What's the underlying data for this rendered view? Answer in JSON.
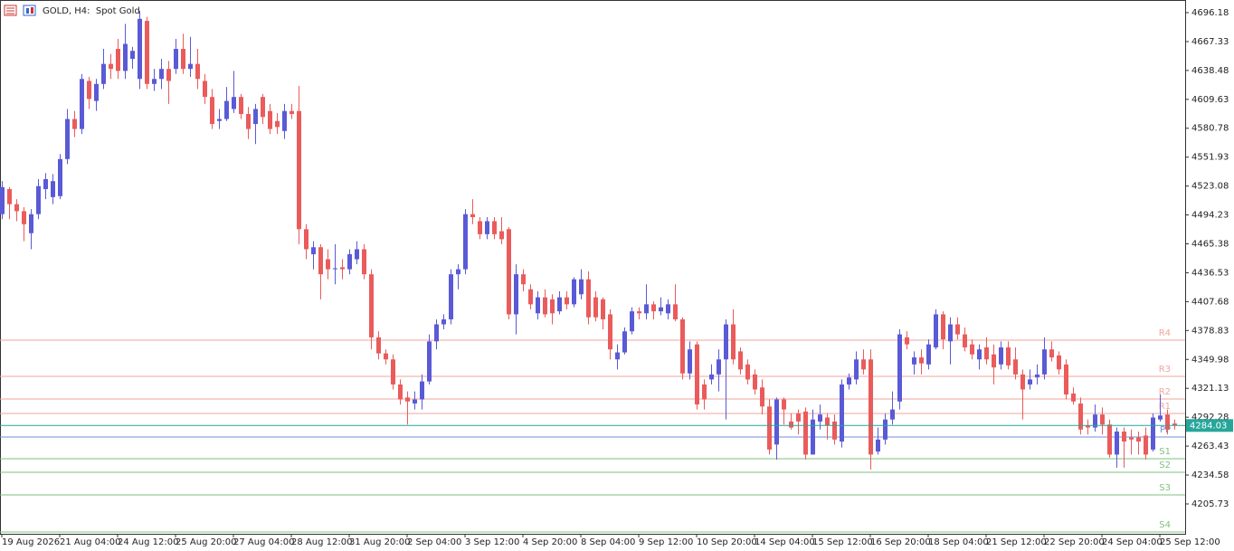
{
  "chart_data": {
    "type": "candlestick",
    "title": "GOLD, H4:  Spot Gold",
    "categories": [
      "19 Aug 2026",
      null,
      null,
      null,
      null,
      null,
      null,
      null,
      "21 Aug 04:00",
      null,
      null,
      null,
      null,
      null,
      null,
      null,
      "24 Aug 12:00",
      null,
      null,
      null,
      null,
      null,
      null,
      null,
      "25 Aug 20:00",
      null,
      null,
      null,
      null,
      null,
      null,
      null,
      "27 Aug 04:00",
      null,
      null,
      null,
      null,
      null,
      null,
      null,
      "28 Aug 12:00",
      null,
      null,
      null,
      null,
      null,
      null,
      null,
      "31 Aug 20:00",
      null,
      null,
      null,
      null,
      null,
      null,
      null,
      "2 Sep 04:00",
      null,
      null,
      null,
      null,
      null,
      null,
      null,
      "3 Sep 12:00",
      null,
      null,
      null,
      null,
      null,
      null,
      null,
      "4 Sep 20:00",
      null,
      null,
      null,
      null,
      null,
      null,
      null,
      "8 Sep 04:00",
      null,
      null,
      null,
      null,
      null,
      null,
      null,
      "9 Sep 12:00",
      null,
      null,
      null,
      null,
      null,
      null,
      null,
      "10 Sep 20:00",
      null,
      null,
      null,
      null,
      null,
      null,
      null,
      "14 Sep 04:00",
      null,
      null,
      null,
      null,
      null,
      null,
      null,
      "15 Sep 12:00",
      null,
      null,
      null,
      null,
      null,
      null,
      null,
      "16 Sep 20:00",
      null,
      null,
      null,
      null,
      null,
      null,
      null,
      "18 Sep 04:00",
      null,
      null,
      null,
      null,
      null,
      null,
      null,
      "21 Sep 12:00",
      null,
      null,
      null,
      null,
      null,
      null,
      null,
      "22 Sep 20:00",
      null,
      null,
      null,
      null,
      null,
      null,
      null,
      "24 Sep 04:00",
      null,
      null,
      null,
      null,
      null,
      null,
      null,
      "25 Sep 12:00",
      null,
      null
    ],
    "open": [
      4495,
      4520,
      4505,
      4498,
      4476,
      4495,
      4520,
      4512,
      4513,
      4550,
      4590,
      4580,
      4628,
      4608,
      4625,
      4645,
      4660,
      4638,
      4650,
      4630,
      4688,
      4625,
      4630,
      4640,
      4640,
      4660,
      4640,
      4645,
      4628,
      4612,
      4588,
      4590,
      4600,
      4612,
      4595,
      4585,
      4612,
      4598,
      4588,
      4578,
      4598,
      4598,
      4480,
      4455,
      4462,
      4450,
      4440,
      4442,
      4440,
      4450,
      4460,
      4435,
      4372,
      4356,
      4350,
      4325,
      4312,
      4306,
      4310,
      4328,
      4368,
      4385,
      4390,
      4435,
      4440,
      4495,
      4488,
      4475,
      4488,
      4478,
      4480,
      4395,
      4435,
      4420,
      4396,
      4412,
      4410,
      4398,
      4412,
      4405,
      4415,
      4430,
      4412,
      4410,
      4395,
      4350,
      4357,
      4378,
      4398,
      4396,
      4405,
      4398,
      4396,
      4405,
      4390,
      4336,
      4365,
      4325,
      4330,
      4335,
      4350,
      4385,
      4358,
      4345,
      4335,
      4322,
      4303,
      4265,
      4310,
      4288,
      4296,
      4298,
      4255,
      4288,
      4292,
      4288,
      4268,
      4325,
      4330,
      4350,
      4350,
      4258,
      4270,
      4290,
      4308,
      4372,
      4345,
      4352,
      4345,
      4362,
      4395,
      4368,
      4385,
      4375,
      4365,
      4350,
      4362,
      4355,
      4345,
      4362,
      4350,
      4335,
      4325,
      4332,
      4335,
      4360,
      4354,
      4345,
      4316,
      4306,
      4284,
      4282,
      4295,
      4285,
      4255,
      4278,
      4272,
      4272,
      4274,
      4260,
      4290,
      4295,
      4286
    ],
    "high": [
      4528,
      4522,
      4510,
      4502,
      4500,
      4530,
      4536,
      4535,
      4555,
      4600,
      4598,
      4635,
      4632,
      4630,
      4660,
      4655,
      4670,
      4685,
      4662,
      4698,
      4692,
      4640,
      4650,
      4648,
      4670,
      4675,
      4672,
      4660,
      4635,
      4620,
      4600,
      4622,
      4638,
      4615,
      4602,
      4605,
      4615,
      4605,
      4596,
      4605,
      4605,
      4623,
      4485,
      4468,
      4465,
      4460,
      4465,
      4450,
      4460,
      4468,
      4465,
      4440,
      4378,
      4360,
      4355,
      4330,
      4318,
      4318,
      4335,
      4375,
      4390,
      4395,
      4440,
      4445,
      4500,
      4510,
      4492,
      4492,
      4492,
      4492,
      4482,
      4445,
      4440,
      4425,
      4418,
      4420,
      4415,
      4418,
      4418,
      4432,
      4440,
      4438,
      4418,
      4412,
      4400,
      4365,
      4382,
      4402,
      4402,
      4425,
      4408,
      4412,
      4410,
      4425,
      4392,
      4368,
      4368,
      4330,
      4345,
      4360,
      4390,
      4400,
      4362,
      4350,
      4340,
      4330,
      4310,
      4312,
      4312,
      4296,
      4300,
      4302,
      4300,
      4305,
      4296,
      4295,
      4330,
      4336,
      4358,
      4360,
      4360,
      4282,
      4296,
      4318,
      4380,
      4378,
      4358,
      4360,
      4370,
      4400,
      4398,
      4392,
      4392,
      4382,
      4370,
      4365,
      4372,
      4365,
      4368,
      4368,
      4362,
      4340,
      4340,
      4345,
      4372,
      4368,
      4358,
      4350,
      4322,
      4312,
      4290,
      4305,
      4302,
      4290,
      4282,
      4282,
      4280,
      4278,
      4282,
      4296,
      4315,
      4300,
      4290
    ],
    "low": [
      4490,
      4490,
      4488,
      4468,
      4460,
      4490,
      4510,
      4505,
      4510,
      4545,
      4572,
      4575,
      4600,
      4598,
      4620,
      4630,
      4630,
      4630,
      4640,
      4620,
      4620,
      4618,
      4620,
      4605,
      4635,
      4635,
      4632,
      4620,
      4605,
      4580,
      4580,
      4588,
      4596,
      4590,
      4570,
      4565,
      4585,
      4575,
      4575,
      4570,
      4590,
      4465,
      4450,
      4440,
      4410,
      4430,
      4425,
      4430,
      4435,
      4445,
      4430,
      4360,
      4350,
      4345,
      4320,
      4305,
      4285,
      4300,
      4300,
      4325,
      4360,
      4380,
      4385,
      4420,
      4435,
      4485,
      4470,
      4470,
      4470,
      4465,
      4390,
      4375,
      4418,
      4400,
      4390,
      4392,
      4385,
      4395,
      4400,
      4402,
      4410,
      4385,
      4388,
      4380,
      4350,
      4340,
      4355,
      4375,
      4390,
      4390,
      4390,
      4394,
      4390,
      4388,
      4330,
      4330,
      4300,
      4300,
      4325,
      4318,
      4290,
      4345,
      4335,
      4325,
      4315,
      4295,
      4255,
      4250,
      4285,
      4280,
      4275,
      4250,
      4255,
      4280,
      4270,
      4265,
      4262,
      4320,
      4325,
      4335,
      4240,
      4255,
      4265,
      4285,
      4300,
      4360,
      4335,
      4335,
      4340,
      4360,
      4360,
      4345,
      4370,
      4358,
      4350,
      4340,
      4345,
      4325,
      4340,
      4340,
      4330,
      4290,
      4320,
      4325,
      4330,
      4348,
      4335,
      4310,
      4305,
      4275,
      4275,
      4278,
      4275,
      4252,
      4242,
      4242,
      4255,
      4255,
      4250,
      4258,
      4288,
      4275,
      4280
    ],
    "close": [
      4522,
      4505,
      4498,
      4485,
      4495,
      4523,
      4530,
      4528,
      4550,
      4590,
      4580,
      4630,
      4610,
      4625,
      4645,
      4640,
      4638,
      4665,
      4658,
      4690,
      4625,
      4630,
      4640,
      4628,
      4660,
      4640,
      4645,
      4630,
      4612,
      4585,
      4590,
      4608,
      4612,
      4595,
      4580,
      4600,
      4592,
      4580,
      4582,
      4598,
      4595,
      4480,
      4460,
      4462,
      4435,
      4440,
      4441,
      4440,
      4455,
      4460,
      4435,
      4372,
      4356,
      4350,
      4325,
      4310,
      4308,
      4310,
      4328,
      4368,
      4385,
      4390,
      4435,
      4440,
      4495,
      4492,
      4475,
      4488,
      4475,
      4470,
      4395,
      4435,
      4425,
      4405,
      4412,
      4395,
      4396,
      4412,
      4405,
      4430,
      4430,
      4392,
      4392,
      4390,
      4360,
      4357,
      4378,
      4398,
      4396,
      4405,
      4398,
      4402,
      4405,
      4390,
      4336,
      4360,
      4305,
      4310,
      4335,
      4350,
      4385,
      4350,
      4340,
      4330,
      4320,
      4303,
      4260,
      4310,
      4300,
      4282,
      4288,
      4255,
      4290,
      4295,
      4284,
      4270,
      4325,
      4332,
      4350,
      4340,
      4255,
      4270,
      4290,
      4300,
      4375,
      4365,
      4352,
      4346,
      4365,
      4395,
      4370,
      4385,
      4375,
      4362,
      4355,
      4360,
      4350,
      4342,
      4362,
      4344,
      4335,
      4320,
      4330,
      4335,
      4360,
      4352,
      4340,
      4315,
      4308,
      4280,
      4282,
      4295,
      4285,
      4255,
      4278,
      4268,
      4270,
      4268,
      4255,
      4292,
      4294,
      4280,
      4284.03
    ],
    "up_color": "#5a5ad6",
    "down_color": "#ea5b5b",
    "ylim": [
      4175.9,
      4707.9
    ],
    "yticks": [
      4696.18,
      4667.33,
      4638.48,
      4609.63,
      4580.78,
      4551.93,
      4523.08,
      4494.23,
      4465.38,
      4436.53,
      4407.68,
      4378.83,
      4349.98,
      4321.13,
      4292.28,
      4263.43,
      4234.58,
      4205.73
    ],
    "levels": [
      {
        "name": "R4",
        "value": 4369.2,
        "color": "#f2a59d"
      },
      {
        "name": "R3",
        "value": 4333.1,
        "color": "#f2a59d"
      },
      {
        "name": "R2",
        "value": 4310.5,
        "color": "#f2a59d"
      },
      {
        "name": "R1",
        "value": 4296.0,
        "color": "#f2a59d"
      },
      {
        "name": "PP",
        "value": 4272.5,
        "color": "#6f8fd0"
      },
      {
        "name": "S1",
        "value": 4250.9,
        "color": "#7fc27f"
      },
      {
        "name": "S2",
        "value": 4237.3,
        "color": "#7fc27f"
      },
      {
        "name": "S3",
        "value": 4214.7,
        "color": "#7fc27f"
      },
      {
        "name": "S4",
        "value": 4177.7,
        "color": "#7fc27f"
      }
    ],
    "current_price": 4284.03,
    "current_color": "#26a69a"
  }
}
